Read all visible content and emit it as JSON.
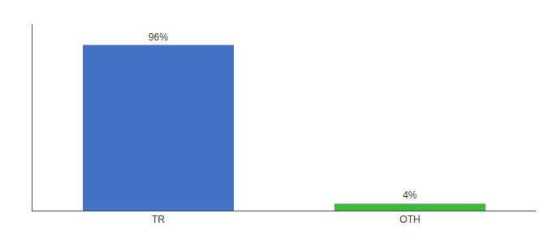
{
  "chart_data": {
    "type": "bar",
    "categories": [
      "TR",
      "OTH"
    ],
    "values": [
      96,
      4
    ],
    "value_labels": [
      "96%",
      "4%"
    ],
    "colors": [
      "#4472c4",
      "#3dba3d"
    ],
    "ylim": [
      0,
      108
    ],
    "yticks": [],
    "grid": false,
    "data_labels": true,
    "tick_labels": "x"
  }
}
